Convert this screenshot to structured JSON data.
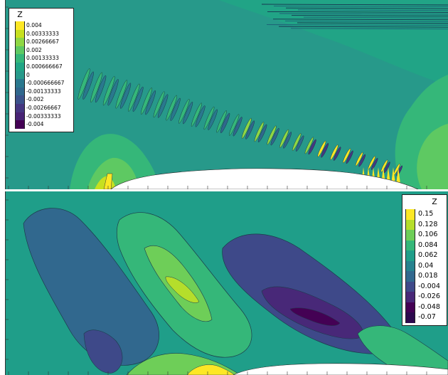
{
  "chart_data": [
    {
      "type": "contour",
      "legend_title": "Z",
      "levels": [
        0.004,
        0.00333333,
        0.00266667,
        0.002,
        0.00133333,
        0.000666667,
        0,
        -0.000666667,
        -0.00133333,
        -0.002,
        -0.00266667,
        -0.00333333,
        -0.004
      ],
      "level_labels": [
        "0.004",
        "0.00333333",
        "0.00266667",
        "0.002",
        "0.00133333",
        "0.000666667",
        "0",
        "-0.000666667",
        "-0.00133333",
        "-0.002",
        "-0.00266667",
        "-0.00333333",
        "-0.004"
      ],
      "colors": [
        "#fde725",
        "#c7e020",
        "#8fd744",
        "#5ec962",
        "#35b779",
        "#21a585",
        "#27998a",
        "#2a788e",
        "#30678d",
        "#3b528b",
        "#453781",
        "#482475",
        "#440154"
      ],
      "background_color": "#27998a",
      "legend_placement": "top-left"
    },
    {
      "type": "contour",
      "legend_title": "Z",
      "levels": [
        0.15,
        0.128,
        0.106,
        0.084,
        0.062,
        0.04,
        0.018,
        -0.004,
        -0.026,
        -0.048,
        -0.07
      ],
      "level_labels": [
        "0.15",
        "0.128",
        "0.106",
        "0.084",
        "0.062",
        "0.04",
        "0.018",
        "-0.004",
        "-0.026",
        "-0.048",
        "-0.07"
      ],
      "colors": [
        "#fde725",
        "#b5de2b",
        "#6ece58",
        "#35b779",
        "#1f9e89",
        "#26828e",
        "#31688e",
        "#3e4989",
        "#482878",
        "#440154",
        "#2d0a4e"
      ],
      "background_color": "#1f9e89",
      "legend_placement": "top-right"
    }
  ]
}
